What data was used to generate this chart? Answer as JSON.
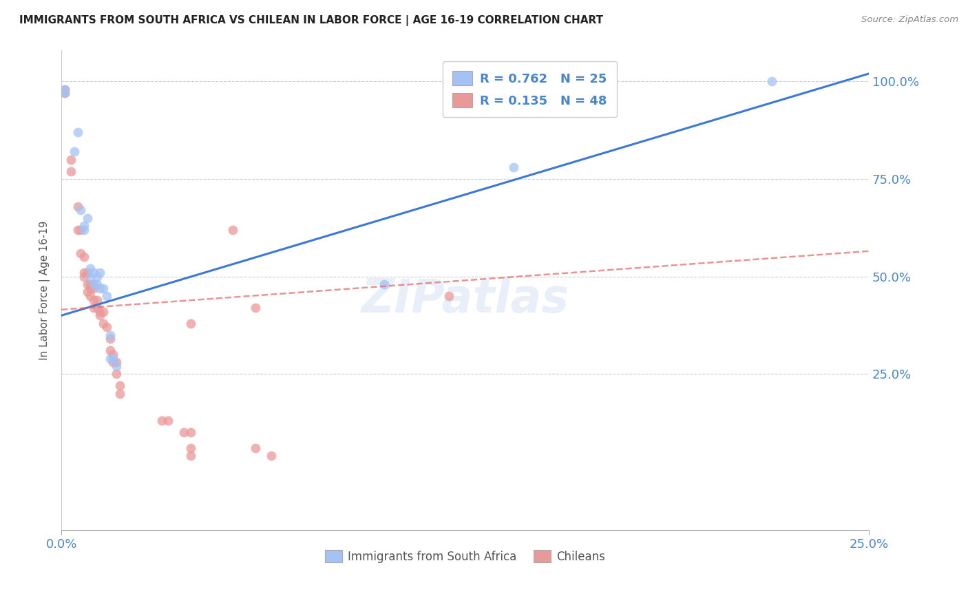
{
  "title": "IMMIGRANTS FROM SOUTH AFRICA VS CHILEAN IN LABOR FORCE | AGE 16-19 CORRELATION CHART",
  "source": "Source: ZipAtlas.com",
  "ylabel": "In Labor Force | Age 16-19",
  "xlim": [
    0.0,
    0.25
  ],
  "ylim": [
    -0.15,
    1.08
  ],
  "ytick_labels": [
    "100.0%",
    "75.0%",
    "50.0%",
    "25.0%"
  ],
  "ytick_values": [
    1.0,
    0.75,
    0.5,
    0.25
  ],
  "xtick_labels": [
    "0.0%",
    "25.0%"
  ],
  "xtick_values": [
    0.0,
    0.25
  ],
  "background_color": "#ffffff",
  "watermark": "ZIPatlas",
  "blue_color": "#a4c2f4",
  "pink_color": "#ea9999",
  "blue_line_color": "#3c78d8",
  "pink_line_color": "#e06666",
  "axis_label_color": "#4a86c8",
  "blue_scatter": [
    [
      0.001,
      0.97
    ],
    [
      0.001,
      0.98
    ],
    [
      0.004,
      0.82
    ],
    [
      0.005,
      0.87
    ],
    [
      0.006,
      0.67
    ],
    [
      0.007,
      0.63
    ],
    [
      0.007,
      0.62
    ],
    [
      0.008,
      0.65
    ],
    [
      0.009,
      0.52
    ],
    [
      0.009,
      0.5
    ],
    [
      0.01,
      0.51
    ],
    [
      0.01,
      0.48
    ],
    [
      0.011,
      0.5
    ],
    [
      0.011,
      0.48
    ],
    [
      0.012,
      0.51
    ],
    [
      0.012,
      0.47
    ],
    [
      0.013,
      0.47
    ],
    [
      0.014,
      0.45
    ],
    [
      0.015,
      0.35
    ],
    [
      0.015,
      0.29
    ],
    [
      0.016,
      0.29
    ],
    [
      0.017,
      0.27
    ],
    [
      0.1,
      0.48
    ],
    [
      0.14,
      0.78
    ],
    [
      0.22,
      1.0
    ]
  ],
  "pink_scatter": [
    [
      0.001,
      0.97
    ],
    [
      0.001,
      0.98
    ],
    [
      0.003,
      0.8
    ],
    [
      0.003,
      0.77
    ],
    [
      0.005,
      0.68
    ],
    [
      0.005,
      0.62
    ],
    [
      0.006,
      0.62
    ],
    [
      0.006,
      0.56
    ],
    [
      0.007,
      0.55
    ],
    [
      0.007,
      0.51
    ],
    [
      0.007,
      0.5
    ],
    [
      0.008,
      0.51
    ],
    [
      0.008,
      0.48
    ],
    [
      0.008,
      0.46
    ],
    [
      0.009,
      0.48
    ],
    [
      0.009,
      0.47
    ],
    [
      0.009,
      0.45
    ],
    [
      0.01,
      0.48
    ],
    [
      0.01,
      0.47
    ],
    [
      0.01,
      0.44
    ],
    [
      0.01,
      0.42
    ],
    [
      0.011,
      0.44
    ],
    [
      0.011,
      0.42
    ],
    [
      0.012,
      0.41
    ],
    [
      0.012,
      0.4
    ],
    [
      0.013,
      0.41
    ],
    [
      0.013,
      0.38
    ],
    [
      0.014,
      0.37
    ],
    [
      0.015,
      0.34
    ],
    [
      0.015,
      0.31
    ],
    [
      0.016,
      0.3
    ],
    [
      0.016,
      0.28
    ],
    [
      0.017,
      0.28
    ],
    [
      0.017,
      0.25
    ],
    [
      0.018,
      0.22
    ],
    [
      0.018,
      0.2
    ],
    [
      0.04,
      0.38
    ],
    [
      0.053,
      0.62
    ],
    [
      0.06,
      0.42
    ],
    [
      0.12,
      0.45
    ],
    [
      0.031,
      0.13
    ],
    [
      0.033,
      0.13
    ],
    [
      0.038,
      0.1
    ],
    [
      0.04,
      0.1
    ],
    [
      0.04,
      0.06
    ],
    [
      0.04,
      0.04
    ],
    [
      0.06,
      0.06
    ],
    [
      0.065,
      0.04
    ]
  ],
  "blue_regline_x": [
    0.0,
    0.25
  ],
  "blue_regline_y": [
    0.4,
    1.02
  ],
  "pink_regline_x": [
    0.0,
    0.25
  ],
  "pink_regline_y": [
    0.415,
    0.565
  ]
}
